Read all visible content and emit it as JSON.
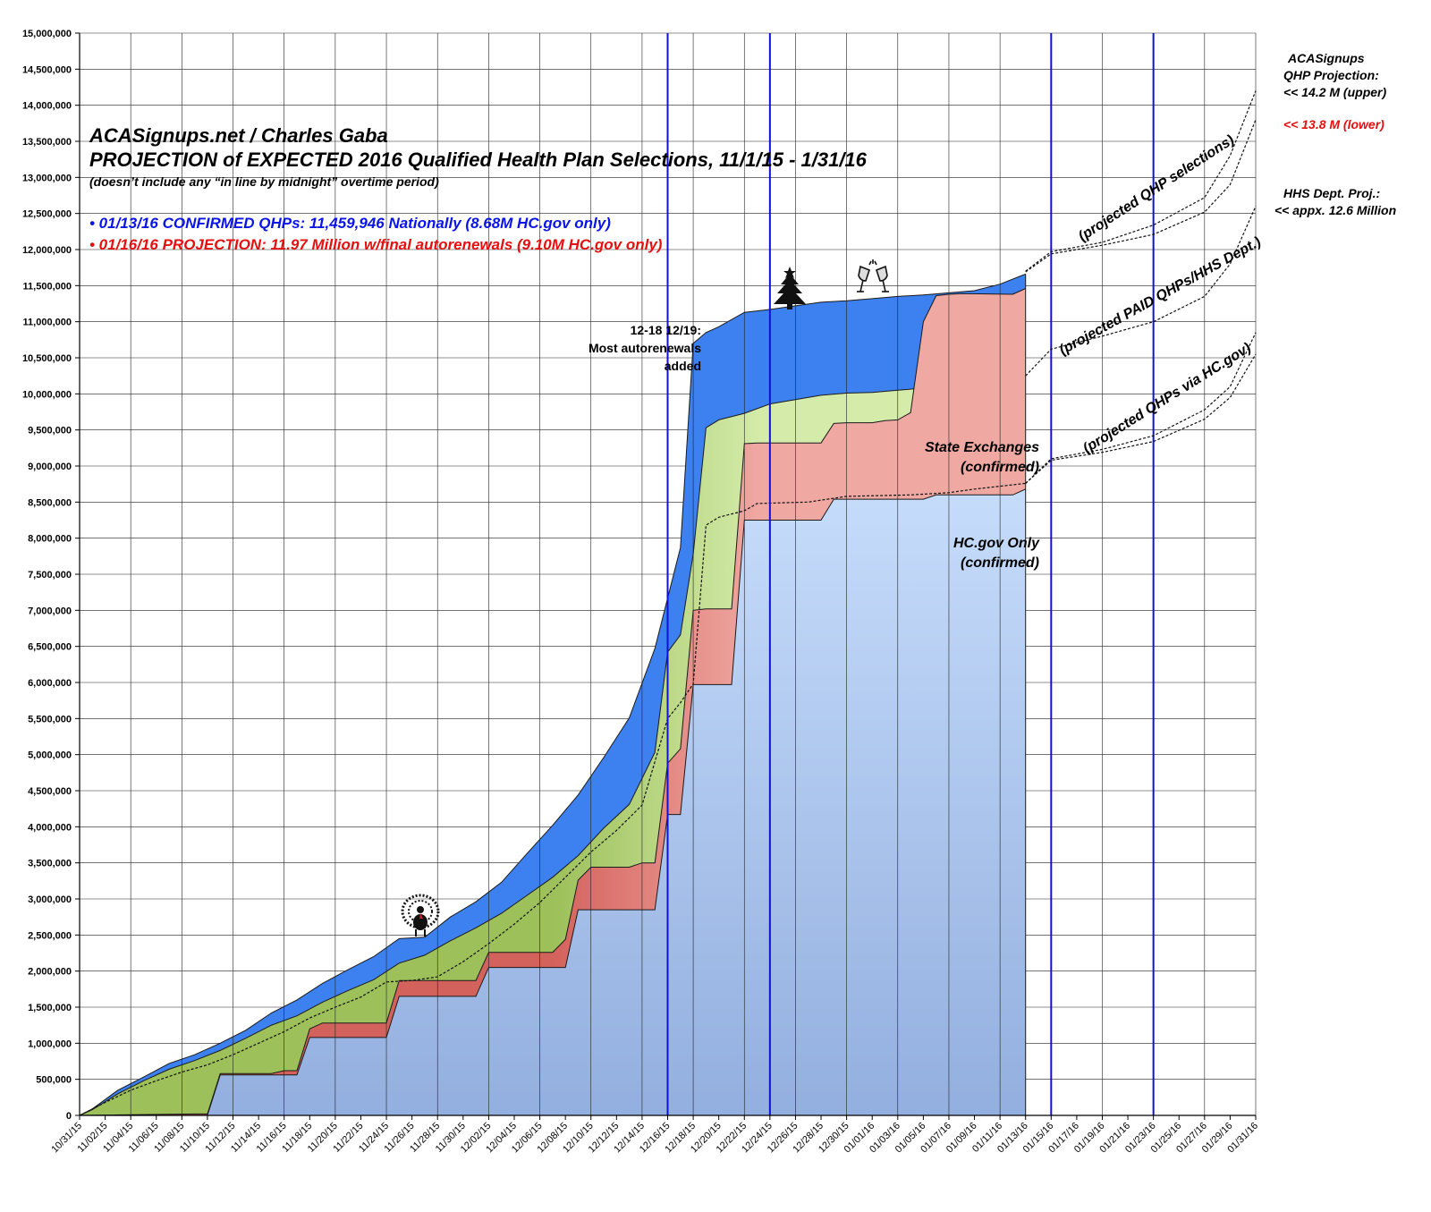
{
  "title_lines": [
    "ACASignups.net / Charles Gaba",
    "PROJECTION of EXPECTED 2016 Qualified Health Plan Selections, 11/1/15 - 1/31/16",
    "(doesn’t include any “in line by midnight” overtime period)"
  ],
  "stats": [
    {
      "text": "• 01/13/16 CONFIRMED QHPs: 11,459,946 Nationally (8.68M HC.gov only)",
      "color": "#0a14e6"
    },
    {
      "text": "• 01/16/16 PROJECTION: 11.97 Million w/final autorenewals (9.10M HC.gov only)",
      "color": "#e60f0f"
    }
  ],
  "annotations": {
    "autorenewals": [
      "12-18 12/19:",
      "Most autorenewals",
      "added"
    ],
    "state_exchanges": [
      "State Exchanges",
      "(confirmed)"
    ],
    "hcgov_only": [
      "HC.gov Only",
      "(confirmed)"
    ],
    "proj_qhp": "(projected QHP selections)",
    "proj_paid": "(projected PAID QHPs/HHS Dept.)",
    "proj_hcgov": "(projected QHPs via HC.gov)",
    "side_acasignups": [
      "ACASignups",
      "QHP Projection:",
      "<< 14.2 M (upper)"
    ],
    "side_lower": "<< 13.8 M (lower)",
    "side_hhs": [
      "HHS Dept. Proj.:",
      "<< appx. 12.6 Million"
    ],
    "icons": [
      "turkey-icon",
      "christmas-tree-icon",
      "champagne-icon"
    ]
  },
  "colors": {
    "total": "#3d80f0",
    "paid": "#d4ebaa",
    "paid_early": "#9dc05a",
    "state": "#f0a8a2",
    "state_early": "#d4625c",
    "hcgov_top": "#c6dcfb",
    "hcgov_bottom": "#93afdf",
    "marker_line": "#1010d8",
    "grid": "#222222",
    "stat_confirmed": "#0a14e6",
    "stat_projection": "#e60f0f",
    "side_lower": "#e60f0f"
  },
  "chart_data": {
    "type": "area",
    "title": "PROJECTION of EXPECTED 2016 Qualified Health Plan Selections, 11/1/15 - 1/31/16",
    "x_start": "10/31/15",
    "x_end": "01/31/16",
    "ylim": [
      0,
      15000000
    ],
    "y_ticks": [
      "0",
      "500,000",
      "1,000,000",
      "1,500,000",
      "2,000,000",
      "2,500,000",
      "3,000,000",
      "3,500,000",
      "4,000,000",
      "4,500,000",
      "5,000,000",
      "5,500,000",
      "6,000,000",
      "6,500,000",
      "7,000,000",
      "7,500,000",
      "8,000,000",
      "8,500,000",
      "9,000,000",
      "9,500,000",
      "10,000,000",
      "10,500,000",
      "11,000,000",
      "11,500,000",
      "12,000,000",
      "12,500,000",
      "13,000,000",
      "13,500,000",
      "14,000,000",
      "14,500,000",
      "15,000,000"
    ],
    "x_ticks": [
      "10/31/15",
      "11/02/15",
      "11/04/15",
      "11/06/15",
      "11/08/15",
      "11/10/15",
      "11/12/15",
      "11/14/15",
      "11/16/15",
      "11/18/15",
      "11/20/15",
      "11/22/15",
      "11/24/15",
      "11/26/15",
      "11/28/15",
      "11/30/15",
      "12/02/15",
      "12/04/15",
      "12/06/15",
      "12/08/15",
      "12/10/15",
      "12/12/15",
      "12/14/15",
      "12/16/15",
      "12/18/15",
      "12/20/15",
      "12/22/15",
      "12/24/15",
      "12/26/15",
      "12/28/15",
      "12/30/15",
      "01/01/16",
      "01/03/16",
      "01/05/16",
      "01/07/16",
      "01/09/16",
      "01/11/16",
      "01/13/16",
      "01/15/16",
      "01/17/16",
      "01/19/16",
      "01/21/16",
      "01/23/16",
      "01/25/16",
      "01/27/16",
      "01/29/16",
      "01/31/16"
    ],
    "grid": true,
    "series": [
      {
        "name": "HC.gov Only (confirmed)",
        "x": [
          "10/31/15",
          "11/09/15",
          "11/10/15",
          "11/11/15",
          "11/12/15",
          "11/17/15",
          "11/18/15",
          "11/19/15",
          "11/23/15",
          "11/24/15",
          "11/25/15",
          "11/30/15",
          "12/01/15",
          "12/02/15",
          "12/07/15",
          "12/08/15",
          "12/09/15",
          "12/14/15",
          "12/15/15",
          "12/16/15",
          "12/17/15",
          "12/18/15",
          "12/19/15",
          "12/20/15",
          "12/21/15",
          "12/22/15",
          "12/23/15",
          "12/27/15",
          "12/28/15",
          "12/29/15",
          "12/30/15",
          "01/01/16",
          "01/02/16",
          "01/03/16",
          "01/04/16",
          "01/05/16",
          "01/06/16",
          "01/07/16",
          "01/12/16",
          "01/13/16"
        ],
        "values": [
          0,
          0,
          0,
          560000,
          560000,
          560000,
          1080000,
          1080000,
          1080000,
          1080000,
          1650000,
          1650000,
          1650000,
          2050000,
          2050000,
          2050000,
          2850000,
          2850000,
          2850000,
          4170000,
          4170000,
          5970000,
          5970000,
          5970000,
          5970000,
          8250000,
          8250000,
          8250000,
          8250000,
          8540000,
          8540000,
          8540000,
          8540000,
          8540000,
          8540000,
          8540000,
          8600000,
          8600000,
          8600000,
          8680000
        ]
      },
      {
        "name": "State Exchanges (confirmed)",
        "x": [
          "10/31/15",
          "11/09/15",
          "11/10/15",
          "11/11/15",
          "11/12/15",
          "11/15/15",
          "11/16/15",
          "11/17/15",
          "11/18/15",
          "11/19/15",
          "11/23/15",
          "11/24/15",
          "11/25/15",
          "11/30/15",
          "12/01/15",
          "12/02/15",
          "12/07/15",
          "12/08/15",
          "12/09/15",
          "12/10/15",
          "12/13/15",
          "12/14/15",
          "12/15/15",
          "12/16/15",
          "12/17/15",
          "12/18/15",
          "12/19/15",
          "12/20/15",
          "12/21/15",
          "12/22/15",
          "12/23/15",
          "12/27/15",
          "12/28/15",
          "12/29/15",
          "12/30/15",
          "01/01/16",
          "01/02/16",
          "01/03/16",
          "01/04/16",
          "01/05/16",
          "01/06/16",
          "01/07/16",
          "01/08/16",
          "01/12/16",
          "01/13/16"
        ],
        "values": [
          0,
          20000,
          20000,
          580000,
          580000,
          580000,
          620000,
          620000,
          1200000,
          1280000,
          1280000,
          1280000,
          1870000,
          1870000,
          1870000,
          2260000,
          2260000,
          2440000,
          3260000,
          3440000,
          3440000,
          3500000,
          3500000,
          4880000,
          5080000,
          7000000,
          7020000,
          7020000,
          7020000,
          9310000,
          9320000,
          9320000,
          9320000,
          9590000,
          9600000,
          9600000,
          9630000,
          9640000,
          9740000,
          11000000,
          11360000,
          11380000,
          11390000,
          11380000,
          11460000
        ]
      },
      {
        "name": "projected PAID QHPs/HHS Dept.",
        "x": [
          "10/31/15",
          "11/01/15",
          "11/03/15",
          "11/05/15",
          "11/07/15",
          "11/09/15",
          "11/11/15",
          "11/13/15",
          "11/15/15",
          "11/17/15",
          "11/19/15",
          "11/21/15",
          "11/23/15",
          "11/25/15",
          "11/27/15",
          "11/29/15",
          "12/01/15",
          "12/03/15",
          "12/05/15",
          "12/07/15",
          "12/09/15",
          "12/11/15",
          "12/13/15",
          "12/15/15",
          "12/16/15",
          "12/17/15",
          "12/18/15",
          "12/19/15",
          "12/20/15",
          "12/22/15",
          "12/24/15",
          "12/26/15",
          "12/28/15",
          "12/30/15",
          "01/01/16",
          "01/03/16",
          "01/05/16",
          "01/06/16",
          "01/07/16",
          "01/08/16",
          "01/10/16",
          "01/12/16",
          "01/13/16"
        ],
        "values": [
          0,
          80000,
          300000,
          480000,
          640000,
          760000,
          900000,
          1070000,
          1250000,
          1380000,
          1570000,
          1730000,
          1880000,
          2110000,
          2220000,
          2420000,
          2600000,
          2800000,
          3050000,
          3300000,
          3600000,
          3980000,
          4310000,
          5030000,
          6420000,
          6660000,
          7780000,
          9530000,
          9640000,
          9730000,
          9860000,
          9920000,
          9980000,
          10010000,
          10020000,
          10050000,
          10080000,
          10100000,
          10100000,
          11380000,
          11370000,
          11380000,
          11460000
        ]
      },
      {
        "name": "CONFIRMED QHPs Nationally",
        "x": [
          "10/31/15",
          "11/01/15",
          "11/03/15",
          "11/05/15",
          "11/07/15",
          "11/09/15",
          "11/11/15",
          "11/13/15",
          "11/15/15",
          "11/17/15",
          "11/19/15",
          "11/21/15",
          "11/23/15",
          "11/25/15",
          "11/27/15",
          "11/29/15",
          "12/01/15",
          "12/03/15",
          "12/05/15",
          "12/07/15",
          "12/09/15",
          "12/11/15",
          "12/13/15",
          "12/15/15",
          "12/16/15",
          "12/17/15",
          "12/18/15",
          "12/19/15",
          "12/20/15",
          "12/22/15",
          "12/24/15",
          "12/26/15",
          "12/28/15",
          "12/30/15",
          "01/01/16",
          "01/03/16",
          "01/05/16",
          "01/07/16",
          "01/09/16",
          "01/11/16",
          "01/13/16"
        ],
        "values": [
          0,
          90000,
          350000,
          530000,
          720000,
          840000,
          1000000,
          1180000,
          1420000,
          1600000,
          1830000,
          2020000,
          2200000,
          2450000,
          2470000,
          2750000,
          2960000,
          3230000,
          3630000,
          4020000,
          4440000,
          4960000,
          5510000,
          6470000,
          7170000,
          7870000,
          10700000,
          10850000,
          10930000,
          11130000,
          11170000,
          11220000,
          11270000,
          11290000,
          11320000,
          11350000,
          11370000,
          11400000,
          11430000,
          11520000,
          11660000
        ]
      }
    ],
    "projections": [
      {
        "name": "projected QHP selections (upper)",
        "x": [
          "01/13/16",
          "01/15/16",
          "01/19/16",
          "01/23/16",
          "01/27/16",
          "01/29/16",
          "01/31/16"
        ],
        "values": [
          11700000,
          11970000,
          12100000,
          12340000,
          12720000,
          13300000,
          14200000
        ]
      },
      {
        "name": "projected QHP selections (lower)",
        "x": [
          "01/13/16",
          "01/15/16",
          "01/19/16",
          "01/23/16",
          "01/27/16",
          "01/29/16",
          "01/31/16"
        ],
        "values": [
          11690000,
          11940000,
          12060000,
          12210000,
          12520000,
          12900000,
          13800000
        ]
      },
      {
        "name": "projected PAID QHPs/HHS Dept.",
        "x": [
          "01/13/16",
          "01/15/16",
          "01/19/16",
          "01/23/16",
          "01/27/16",
          "01/29/16",
          "01/31/16"
        ],
        "values": [
          10250000,
          10620000,
          10800000,
          11000000,
          11350000,
          11800000,
          12600000
        ]
      },
      {
        "name": "projected QHPs via HC.gov (upper)",
        "x": [
          "01/13/16",
          "01/15/16",
          "01/19/16",
          "01/23/16",
          "01/27/16",
          "01/29/16",
          "01/31/16"
        ],
        "values": [
          8760000,
          9100000,
          9230000,
          9420000,
          9780000,
          10100000,
          10850000
        ]
      },
      {
        "name": "projected QHPs via HC.gov (lower)",
        "x": [
          "01/13/16",
          "01/15/16",
          "01/19/16",
          "01/23/16",
          "01/27/16",
          "01/29/16",
          "01/31/16"
        ],
        "values": [
          8760000,
          9080000,
          9190000,
          9340000,
          9650000,
          9950000,
          10550000
        ]
      }
    ],
    "projected_hcgov_line": {
      "x": [
        "10/31/15",
        "11/02/15",
        "11/04/15",
        "11/06/15",
        "11/08/15",
        "11/10/15",
        "11/12/15",
        "11/14/15",
        "11/16/15",
        "11/18/15",
        "11/20/15",
        "11/22/15",
        "11/24/15",
        "11/26/15",
        "11/28/15",
        "11/30/15",
        "12/02/15",
        "12/04/15",
        "12/06/15",
        "12/08/15",
        "12/10/15",
        "12/12/15",
        "12/14/15",
        "12/16/15",
        "12/17/15",
        "12/18/15",
        "12/19/15",
        "12/20/15",
        "12/22/15",
        "12/23/15",
        "12/27/15",
        "12/30/15",
        "01/04/16",
        "01/07/16",
        "01/09/16",
        "01/11/16",
        "01/13/16"
      ],
      "values": [
        0,
        180000,
        350000,
        480000,
        600000,
        700000,
        840000,
        1000000,
        1160000,
        1350000,
        1500000,
        1640000,
        1850000,
        1870000,
        1920000,
        2130000,
        2380000,
        2650000,
        2950000,
        3300000,
        3650000,
        3950000,
        4300000,
        5500000,
        5720000,
        5980000,
        8180000,
        8290000,
        8380000,
        8480000,
        8500000,
        8580000,
        8600000,
        8630000,
        8680000,
        8720000,
        8760000
      ]
    },
    "markers": [
      "12/16/15",
      "12/24/15",
      "01/15/16",
      "01/23/16"
    ]
  }
}
